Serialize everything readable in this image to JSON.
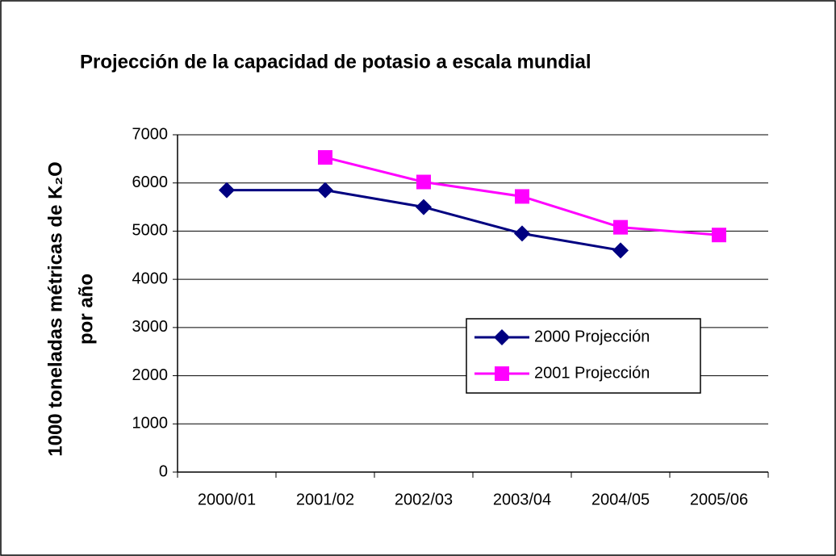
{
  "chart_data": {
    "type": "line",
    "title": "Projección de la capacidad de potasio a escala mundial",
    "y_label": [
      "1000 toneladas métricas de K₂O",
      "por año"
    ],
    "categories": [
      "2000/01",
      "2001/02",
      "2002/03",
      "2003/04",
      "2004/05",
      "2005/06"
    ],
    "series": [
      {
        "name": "2000 Projección",
        "color": "#000080",
        "marker": "diamond",
        "values": [
          5850,
          5850,
          5500,
          4950,
          4600,
          null
        ]
      },
      {
        "name": "2001 Projección",
        "color": "#ff00ff",
        "marker": "square",
        "values": [
          null,
          6530,
          6020,
          5720,
          5080,
          4920
        ]
      }
    ],
    "ylim": [
      0,
      7000
    ],
    "yticks": [
      0,
      1000,
      2000,
      3000,
      4000,
      5000,
      6000,
      7000
    ],
    "grid": true
  }
}
